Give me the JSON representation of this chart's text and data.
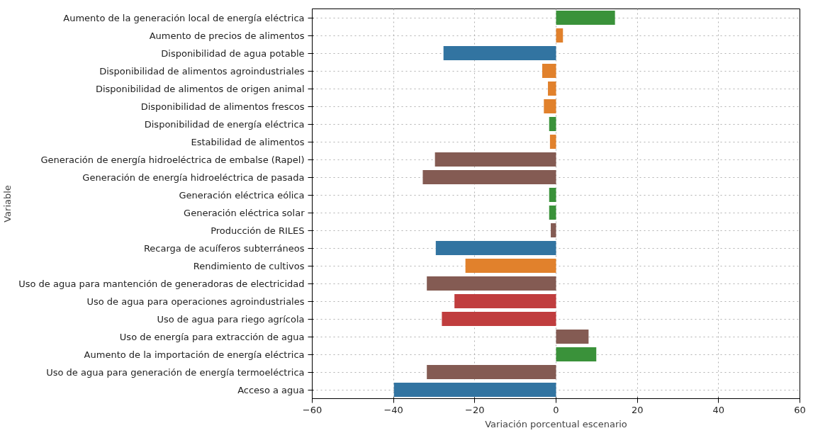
{
  "chart_data": {
    "type": "bar",
    "orientation": "horizontal",
    "xlabel": "Variación porcentual escenario",
    "ylabel": "Variable",
    "categories": [
      "Aumento de la generación local de energía eléctrica",
      "Aumento de precios de alimentos",
      "Disponibilidad de agua potable",
      "Disponibilidad de alimentos agroindustriales",
      "Disponibilidad de alimentos de origen animal",
      "Disponibilidad de alimentos frescos",
      "Disponibilidad de energía eléctrica",
      "Estabilidad de alimentos",
      "Generación de energía hidroeléctrica de embalse (Rapel)",
      "Generación de energía hidroeléctrica de pasada",
      "Generación eléctrica eólica",
      "Generación eléctrica solar",
      "Producción de RILES",
      "Recarga de acuíferos subterráneos",
      "Rendimiento de cultivos",
      "Uso de agua para mantención de generadoras de electricidad",
      "Uso de agua para operaciones agroindustriales",
      "Uso de agua para riego agrícola",
      "Uso de energía para extracción de agua",
      "Aumento de la importación de energía eléctrica",
      "Uso de agua para generación de energía termoeléctrica",
      "Acceso a agua"
    ],
    "values": [
      14.5,
      1.7,
      -27.7,
      -3.4,
      -2,
      -3,
      -1.7,
      -1.5,
      -29.8,
      -32.8,
      -1.7,
      -1.7,
      -1.3,
      -29.6,
      -22.3,
      -31.8,
      -25,
      -28.1,
      8,
      9.9,
      -31.8,
      -39.9
    ],
    "colors": [
      "#3a923a",
      "#e1812c",
      "#3274a1",
      "#e1812c",
      "#e1812c",
      "#e1812c",
      "#3a923a",
      "#e1812c",
      "#845b53",
      "#845b53",
      "#3a923a",
      "#3a923a",
      "#845b53",
      "#3274a1",
      "#e1812c",
      "#845b53",
      "#c03d3e",
      "#c03d3e",
      "#845b53",
      "#3a923a",
      "#845b53",
      "#3274a1"
    ],
    "xlim": [
      -60,
      60
    ],
    "xticks": [
      -60,
      -40,
      -20,
      0,
      20,
      40,
      60
    ],
    "grid": true,
    "line_style": "dotted"
  }
}
